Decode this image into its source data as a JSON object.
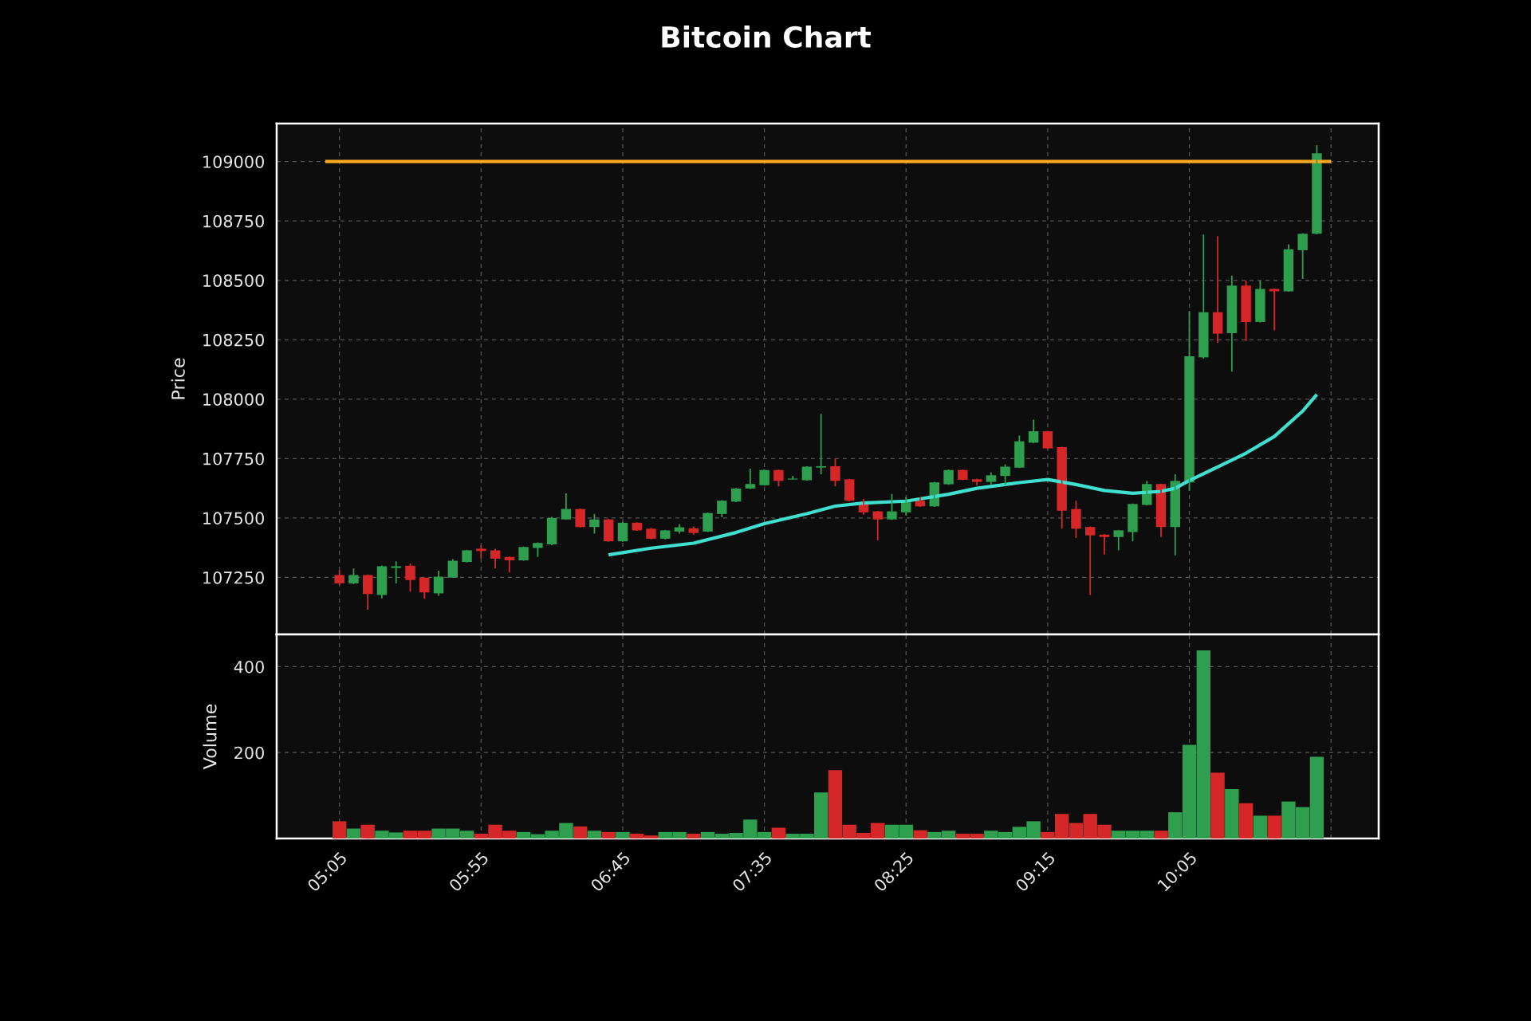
{
  "chart_data": [
    {
      "type": "candlestick",
      "title": "Bitcoin Chart",
      "ylabel": "Price",
      "x": [
        5.0833,
        5.1667,
        5.25,
        5.3333,
        5.4167,
        5.5,
        5.5833,
        5.6667,
        5.75,
        5.8333,
        5.9167,
        6,
        6.0833,
        6.1667,
        6.25,
        6.3333,
        6.4167,
        6.5,
        6.5833,
        6.6667,
        6.75,
        6.8333,
        6.9167,
        7,
        7.0833,
        7.1667,
        7.25,
        7.3333,
        7.4167,
        7.5,
        7.5833,
        7.6667,
        7.75,
        7.8333,
        7.9167,
        8,
        8.0833,
        8.1667,
        8.25,
        8.3333,
        8.4167,
        8.5,
        8.5833,
        8.6667,
        8.75,
        8.8333,
        8.9167,
        9,
        9.0833,
        9.1667,
        9.25,
        9.3333,
        9.4167,
        9.5,
        9.5833,
        9.6667,
        9.75,
        9.8333,
        9.9167,
        10,
        10.0833,
        10.1667,
        10.25,
        10.3333,
        10.4167,
        10.5,
        10.5833,
        10.6667,
        10.75,
        10.8333
      ],
      "ohlc": [
        [
          107260,
          107281,
          107218,
          107225
        ],
        [
          107225,
          107288,
          107222,
          107260
        ],
        [
          107260,
          107262,
          107114,
          107180
        ],
        [
          107176,
          107300,
          107162,
          107297
        ],
        [
          107290,
          107318,
          107225,
          107297
        ],
        [
          107299,
          107308,
          107190,
          107239
        ],
        [
          107249,
          107250,
          107160,
          107187
        ],
        [
          107183,
          107278,
          107173,
          107253
        ],
        [
          107249,
          107327,
          107249,
          107320
        ],
        [
          107315,
          107366,
          107313,
          107364
        ],
        [
          107371,
          107385,
          107329,
          107361
        ],
        [
          107364,
          107371,
          107288,
          107329
        ],
        [
          107336,
          107338,
          107271,
          107322
        ],
        [
          107322,
          107380,
          107320,
          107378
        ],
        [
          107374,
          107397,
          107336,
          107395
        ],
        [
          107389,
          107505,
          107385,
          107500
        ],
        [
          107494,
          107604,
          107494,
          107538
        ],
        [
          107538,
          107540,
          107460,
          107462
        ],
        [
          107462,
          107517,
          107434,
          107494
        ],
        [
          107494,
          107497,
          107400,
          107402
        ],
        [
          107402,
          107484,
          107400,
          107480
        ],
        [
          107480,
          107482,
          107446,
          107448
        ],
        [
          107455,
          107458,
          107410,
          107413
        ],
        [
          107413,
          107450,
          107410,
          107448
        ],
        [
          107443,
          107475,
          107434,
          107461
        ],
        [
          107457,
          107464,
          107430,
          107437
        ],
        [
          107443,
          107523,
          107441,
          107521
        ],
        [
          107517,
          107575,
          107503,
          107573
        ],
        [
          107569,
          107626,
          107567,
          107624
        ],
        [
          107624,
          107708,
          107622,
          107643
        ],
        [
          107638,
          107704,
          107636,
          107702
        ],
        [
          107702,
          107704,
          107633,
          107656
        ],
        [
          107662,
          107677,
          107662,
          107666
        ],
        [
          107659,
          107718,
          107657,
          107716
        ],
        [
          107712,
          107938,
          107684,
          107718
        ],
        [
          107718,
          107751,
          107633,
          107656
        ],
        [
          107663,
          107665,
          107570,
          107573
        ],
        [
          107566,
          107580,
          107514,
          107524
        ],
        [
          107528,
          107530,
          107406,
          107494
        ],
        [
          107494,
          107601,
          107492,
          107528
        ],
        [
          107524,
          107587,
          107510,
          107566
        ],
        [
          107573,
          107587,
          107547,
          107549
        ],
        [
          107549,
          107652,
          107547,
          107650
        ],
        [
          107642,
          107704,
          107640,
          107702
        ],
        [
          107702,
          107704,
          107659,
          107661
        ],
        [
          107663,
          107666,
          107636,
          107652
        ],
        [
          107652,
          107691,
          107642,
          107680
        ],
        [
          107677,
          107726,
          107638,
          107716
        ],
        [
          107712,
          107847,
          107710,
          107823
        ],
        [
          107817,
          107914,
          107815,
          107865
        ],
        [
          107865,
          107867,
          107791,
          107793
        ],
        [
          107798,
          107800,
          107455,
          107531
        ],
        [
          107538,
          107573,
          107416,
          107455
        ],
        [
          107462,
          107464,
          107176,
          107427
        ],
        [
          107430,
          107432,
          107346,
          107420
        ],
        [
          107420,
          107450,
          107364,
          107448
        ],
        [
          107441,
          107561,
          107402,
          107559
        ],
        [
          107555,
          107656,
          107553,
          107643
        ],
        [
          107643,
          107645,
          107420,
          107462
        ],
        [
          107462,
          107684,
          107343,
          107656
        ],
        [
          107650,
          108371,
          107615,
          108181
        ],
        [
          108176,
          108693,
          108171,
          108366
        ],
        [
          108366,
          108686,
          108237,
          108276
        ],
        [
          108278,
          108520,
          108116,
          108478
        ],
        [
          108478,
          108499,
          108245,
          108325
        ],
        [
          108325,
          108499,
          108323,
          108464
        ],
        [
          108464,
          108466,
          108290,
          108454
        ],
        [
          108454,
          108652,
          108452,
          108631
        ],
        [
          108627,
          108698,
          108506,
          108696
        ],
        [
          108696,
          109069,
          108694,
          109035
        ]
      ],
      "colors": [
        "#d62728",
        "#2e9e4f",
        "#d62728",
        "#2e9e4f",
        "#2e9e4f",
        "#d62728",
        "#d62728",
        "#2e9e4f",
        "#2e9e4f",
        "#2e9e4f",
        "#d62728",
        "#d62728",
        "#d62728",
        "#2e9e4f",
        "#2e9e4f",
        "#2e9e4f",
        "#2e9e4f",
        "#d62728",
        "#2e9e4f",
        "#d62728",
        "#2e9e4f",
        "#d62728",
        "#d62728",
        "#2e9e4f",
        "#2e9e4f",
        "#d62728",
        "#2e9e4f",
        "#2e9e4f",
        "#2e9e4f",
        "#2e9e4f",
        "#2e9e4f",
        "#d62728",
        "#2e9e4f",
        "#2e9e4f",
        "#2e9e4f",
        "#d62728",
        "#d62728",
        "#d62728",
        "#d62728",
        "#2e9e4f",
        "#2e9e4f",
        "#d62728",
        "#2e9e4f",
        "#2e9e4f",
        "#d62728",
        "#d62728",
        "#2e9e4f",
        "#2e9e4f",
        "#2e9e4f",
        "#2e9e4f",
        "#d62728",
        "#d62728",
        "#d62728",
        "#d62728",
        "#d62728",
        "#2e9e4f",
        "#2e9e4f",
        "#2e9e4f",
        "#d62728",
        "#2e9e4f",
        "#2e9e4f",
        "#2e9e4f",
        "#d62728",
        "#2e9e4f",
        "#d62728",
        "#2e9e4f",
        "#d62728",
        "#2e9e4f",
        "#2e9e4f",
        "#2e9e4f"
      ],
      "series": [
        {
          "type": "line",
          "color": "#40e0d0",
          "x": [
            6.6667,
            6.9167,
            7.1667,
            7.4167,
            7.5833,
            7.8333,
            8.0,
            8.1667,
            8.4167,
            8.6667,
            8.8333,
            9.0833,
            9.25,
            9.4167,
            9.5833,
            9.75,
            9.9167,
            10.0,
            10.0833,
            10.25,
            10.4167,
            10.5833,
            10.75,
            10.8333
          ],
          "values": [
            107345,
            107373,
            107394,
            107439,
            107476,
            107518,
            107550,
            107563,
            107571,
            107600,
            107625,
            107649,
            107662,
            107641,
            107616,
            107604,
            107612,
            107625,
            107658,
            107715,
            107773,
            107843,
            107950,
            108020
          ]
        },
        {
          "type": "line",
          "color": "#f5a623",
          "x": [
            5.0,
            10.9167
          ],
          "values": [
            109000,
            109000
          ]
        }
      ],
      "xlim": [
        4.714,
        11.197
      ],
      "xticks": [
        {
          "value": 5.0833,
          "label": null
        },
        {
          "value": 5.9167,
          "label": null
        },
        {
          "value": 6.75,
          "label": null
        },
        {
          "value": 7.5833,
          "label": null
        },
        {
          "value": 8.4167,
          "label": null
        },
        {
          "value": 9.25,
          "label": null
        },
        {
          "value": 10.0833,
          "label": null
        },
        {
          "value": 10.9167,
          "label": null
        }
      ],
      "ylim": [
        107010,
        109160
      ],
      "yticks": [
        107250,
        107500,
        107750,
        108000,
        108250,
        108500,
        108750,
        109000
      ],
      "grid": true,
      "tick_labels": "y"
    },
    {
      "type": "bar",
      "ylabel": "Volume",
      "x": [
        5.0833,
        5.1667,
        5.25,
        5.3333,
        5.4167,
        5.5,
        5.5833,
        5.6667,
        5.75,
        5.8333,
        5.9167,
        6,
        6.0833,
        6.1667,
        6.25,
        6.3333,
        6.4167,
        6.5,
        6.5833,
        6.6667,
        6.75,
        6.8333,
        6.9167,
        7,
        7.0833,
        7.1667,
        7.25,
        7.3333,
        7.4167,
        7.5,
        7.5833,
        7.6667,
        7.75,
        7.8333,
        7.9167,
        8,
        8.0833,
        8.1667,
        8.25,
        8.3333,
        8.4167,
        8.5,
        8.5833,
        8.6667,
        8.75,
        8.8333,
        8.9167,
        9,
        9.0833,
        9.1667,
        9.25,
        9.3333,
        9.4167,
        9.5,
        9.5833,
        9.6667,
        9.75,
        9.8333,
        9.9167,
        10,
        10.0833,
        10.1667,
        10.25,
        10.3333,
        10.4167,
        10.5,
        10.5833,
        10.6667,
        10.75,
        10.8333
      ],
      "values": [
        40,
        23,
        32,
        18,
        14,
        18,
        18,
        23,
        23,
        18,
        11,
        32,
        18,
        15,
        10,
        18,
        36,
        28,
        18,
        15,
        15,
        11,
        7,
        15,
        15,
        11,
        15,
        11,
        13,
        44,
        15,
        25,
        11,
        11,
        107,
        159,
        32,
        13,
        36,
        32,
        32,
        19,
        15,
        18,
        11,
        11,
        18,
        15,
        27,
        40,
        15,
        57,
        36,
        57,
        32,
        18,
        18,
        18,
        18,
        61,
        218,
        438,
        153,
        115,
        82,
        53,
        53,
        86,
        73,
        190
      ],
      "colors": [
        "#d62728",
        "#2e9e4f",
        "#d62728",
        "#2e9e4f",
        "#2e9e4f",
        "#d62728",
        "#d62728",
        "#2e9e4f",
        "#2e9e4f",
        "#2e9e4f",
        "#d62728",
        "#d62728",
        "#d62728",
        "#2e9e4f",
        "#2e9e4f",
        "#2e9e4f",
        "#2e9e4f",
        "#d62728",
        "#2e9e4f",
        "#d62728",
        "#2e9e4f",
        "#d62728",
        "#d62728",
        "#2e9e4f",
        "#2e9e4f",
        "#d62728",
        "#2e9e4f",
        "#2e9e4f",
        "#2e9e4f",
        "#2e9e4f",
        "#2e9e4f",
        "#d62728",
        "#2e9e4f",
        "#2e9e4f",
        "#2e9e4f",
        "#d62728",
        "#d62728",
        "#d62728",
        "#d62728",
        "#2e9e4f",
        "#2e9e4f",
        "#d62728",
        "#2e9e4f",
        "#2e9e4f",
        "#d62728",
        "#d62728",
        "#2e9e4f",
        "#2e9e4f",
        "#2e9e4f",
        "#2e9e4f",
        "#d62728",
        "#d62728",
        "#d62728",
        "#d62728",
        "#d62728",
        "#2e9e4f",
        "#2e9e4f",
        "#2e9e4f",
        "#d62728",
        "#2e9e4f",
        "#2e9e4f",
        "#2e9e4f",
        "#d62728",
        "#2e9e4f",
        "#d62728",
        "#2e9e4f",
        "#d62728",
        "#2e9e4f",
        "#2e9e4f",
        "#2e9e4f"
      ],
      "xlim": [
        4.714,
        11.197
      ],
      "xticks": [
        {
          "value": 5.0833,
          "label": "05:05"
        },
        {
          "value": 5.9167,
          "label": "05:55"
        },
        {
          "value": 6.75,
          "label": "06:45"
        },
        {
          "value": 7.5833,
          "label": "07:35"
        },
        {
          "value": 8.4167,
          "label": "08:25"
        },
        {
          "value": 9.25,
          "label": "09:15"
        },
        {
          "value": 10.0833,
          "label": "10:05"
        },
        {
          "value": 10.9167,
          "label": null
        }
      ],
      "ylim": [
        0,
        475
      ],
      "yticks": [
        200,
        400
      ],
      "grid": true
    }
  ]
}
